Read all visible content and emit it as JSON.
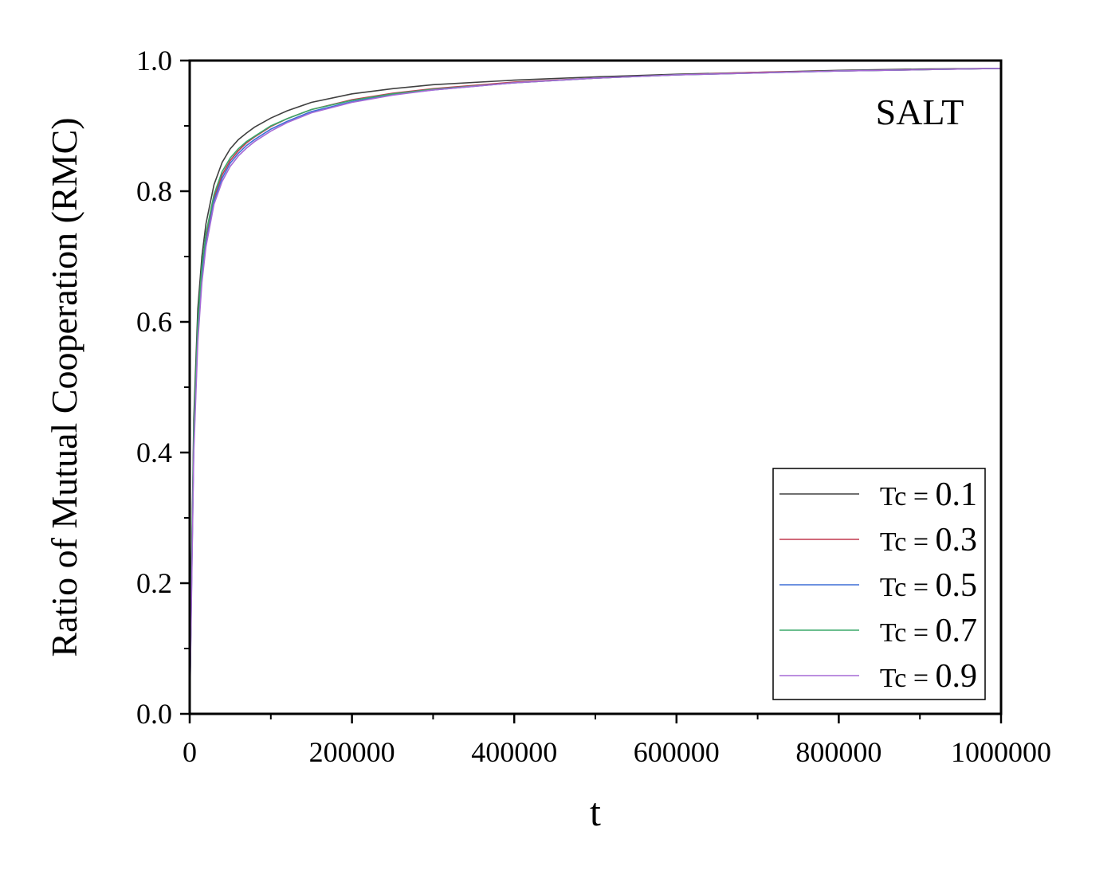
{
  "chart_data": {
    "type": "line",
    "title": "",
    "annotation": "SALT",
    "xlabel": "t",
    "ylabel": "Ratio of Mutual Cooperation (RMC)",
    "xlim": [
      0,
      1000000
    ],
    "ylim": [
      0.0,
      1.0
    ],
    "x_ticks": [
      0,
      200000,
      400000,
      600000,
      800000,
      1000000
    ],
    "x_tick_labels": [
      "0",
      "200000",
      "400000",
      "600000",
      "800000",
      "1000000"
    ],
    "y_ticks": [
      0.0,
      0.2,
      0.4,
      0.6,
      0.8,
      1.0
    ],
    "y_tick_labels": [
      "0.0",
      "0.2",
      "0.4",
      "0.6",
      "0.8",
      "1.0"
    ],
    "grid": false,
    "legend_position": "bottom-right",
    "x": [
      0,
      2000,
      5000,
      10000,
      15000,
      20000,
      30000,
      40000,
      50000,
      60000,
      70000,
      80000,
      100000,
      120000,
      150000,
      200000,
      250000,
      300000,
      400000,
      500000,
      600000,
      700000,
      800000,
      900000,
      1000000
    ],
    "series": [
      {
        "name": "0.1",
        "label_prefix": "Tc",
        "label_eq": "=",
        "color": "#404040",
        "values": [
          0.0,
          0.2,
          0.45,
          0.62,
          0.7,
          0.75,
          0.81,
          0.844,
          0.865,
          0.879,
          0.889,
          0.898,
          0.912,
          0.923,
          0.936,
          0.949,
          0.957,
          0.963,
          0.97,
          0.975,
          0.979,
          0.982,
          0.985,
          0.987,
          0.988
        ]
      },
      {
        "name": "0.3",
        "label_prefix": "Tc",
        "label_eq": "=",
        "color": "#c0394f",
        "values": [
          0.0,
          0.18,
          0.42,
          0.59,
          0.68,
          0.73,
          0.79,
          0.825,
          0.847,
          0.862,
          0.874,
          0.883,
          0.899,
          0.911,
          0.925,
          0.94,
          0.95,
          0.957,
          0.967,
          0.973,
          0.978,
          0.982,
          0.984,
          0.986,
          0.988
        ]
      },
      {
        "name": "0.5",
        "label_prefix": "Tc",
        "label_eq": "=",
        "color": "#3d6fd6",
        "values": [
          0.0,
          0.17,
          0.41,
          0.58,
          0.67,
          0.72,
          0.785,
          0.82,
          0.843,
          0.858,
          0.87,
          0.879,
          0.895,
          0.907,
          0.922,
          0.937,
          0.948,
          0.955,
          0.966,
          0.973,
          0.978,
          0.981,
          0.984,
          0.986,
          0.988
        ]
      },
      {
        "name": "0.7",
        "label_prefix": "Tc",
        "label_eq": "=",
        "color": "#3aa86a",
        "values": [
          0.0,
          0.19,
          0.43,
          0.6,
          0.685,
          0.735,
          0.795,
          0.83,
          0.851,
          0.865,
          0.876,
          0.884,
          0.9,
          0.911,
          0.925,
          0.939,
          0.949,
          0.956,
          0.966,
          0.973,
          0.978,
          0.981,
          0.984,
          0.986,
          0.988
        ]
      },
      {
        "name": "0.9",
        "label_prefix": "Tc",
        "label_eq": "=",
        "color": "#a56ad6",
        "values": [
          0.0,
          0.16,
          0.4,
          0.57,
          0.66,
          0.715,
          0.78,
          0.815,
          0.838,
          0.854,
          0.866,
          0.876,
          0.892,
          0.905,
          0.92,
          0.936,
          0.947,
          0.955,
          0.966,
          0.973,
          0.978,
          0.981,
          0.984,
          0.986,
          0.988
        ]
      }
    ]
  }
}
